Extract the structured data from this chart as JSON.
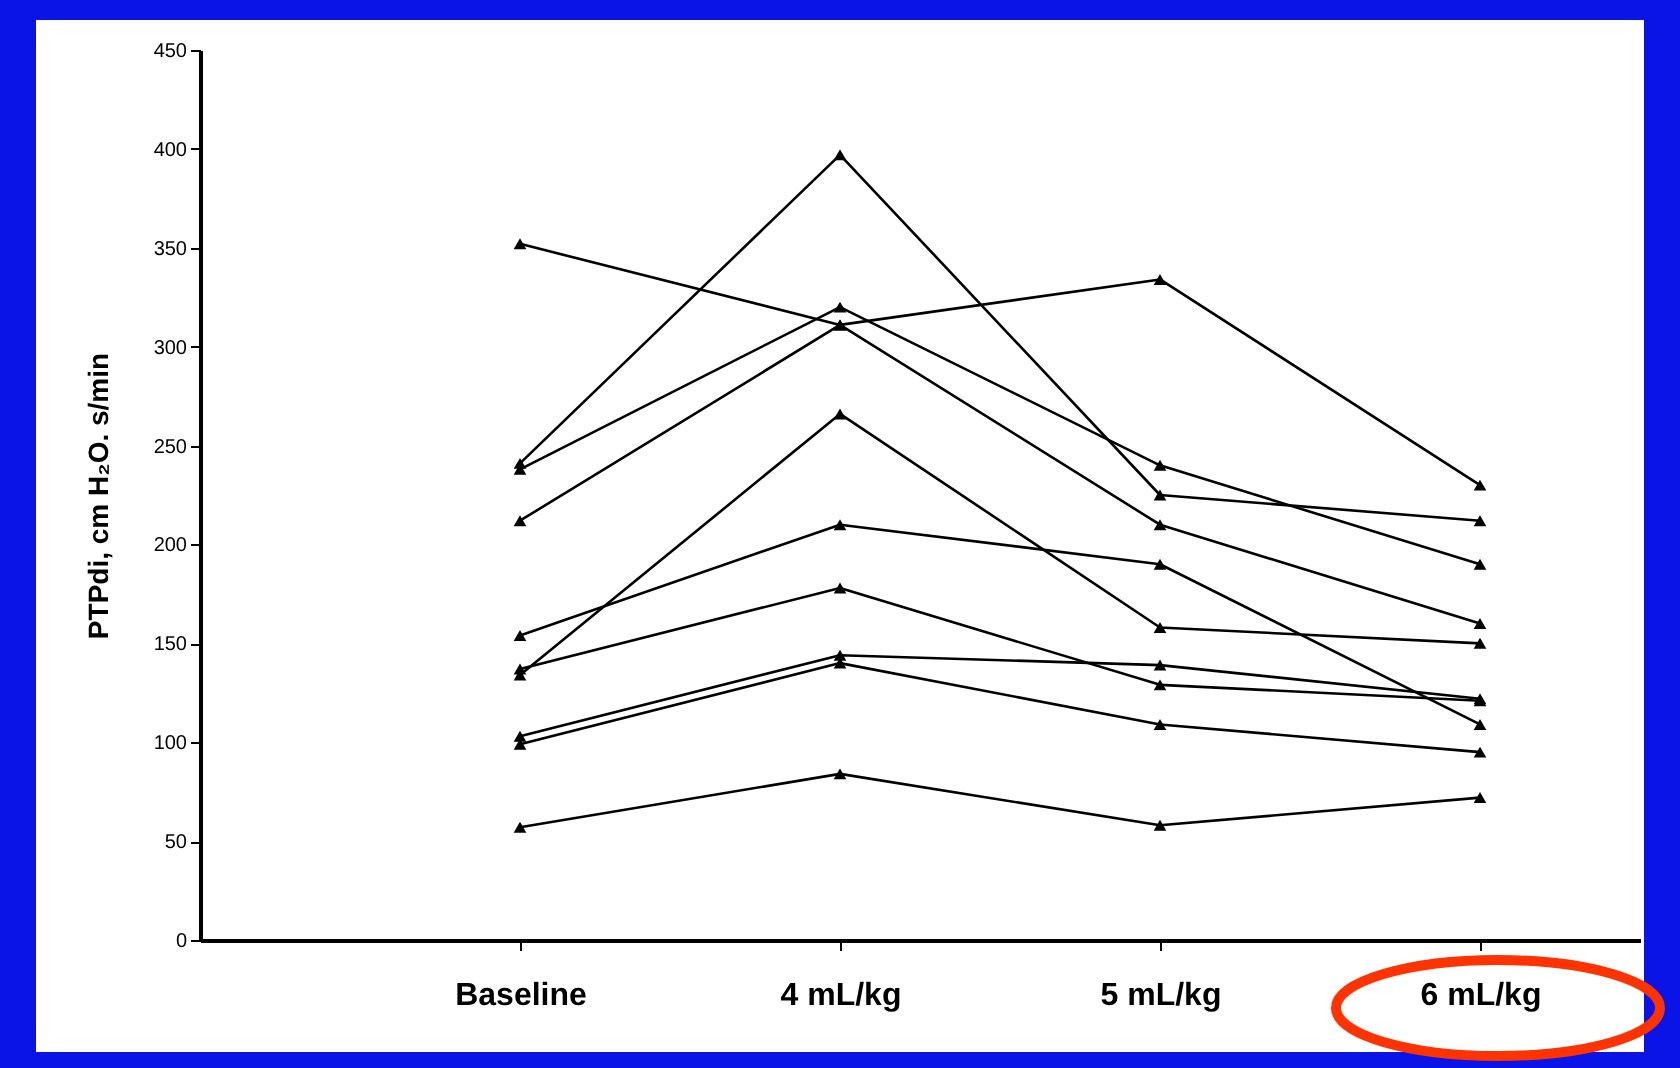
{
  "chart_data": {
    "type": "line",
    "ylabel": "PTPdi, cm H₂O. s/min",
    "categories": [
      "Baseline",
      "4 mL/kg",
      "5 mL/kg",
      "6 mL/kg"
    ],
    "ylim": [
      0,
      450
    ],
    "yticks": [
      0,
      50,
      100,
      150,
      200,
      250,
      300,
      350,
      400,
      450
    ],
    "grid": false,
    "marker": "triangle",
    "line_style": "solid",
    "series": [
      {
        "color": "#000000",
        "values": [
          352,
          311,
          334,
          230
        ]
      },
      {
        "color": "#000000",
        "values": [
          241,
          397,
          225,
          212
        ]
      },
      {
        "color": "#000000",
        "values": [
          238,
          320,
          240,
          190
        ]
      },
      {
        "color": "#000000",
        "values": [
          212,
          311,
          210,
          160
        ]
      },
      {
        "color": "#000000",
        "values": [
          154,
          210,
          190,
          109
        ]
      },
      {
        "color": "#000000",
        "values": [
          137,
          178,
          129,
          121
        ]
      },
      {
        "color": "#000000",
        "values": [
          134,
          266,
          158,
          150
        ]
      },
      {
        "color": "#000000",
        "values": [
          103,
          144,
          139,
          122
        ]
      },
      {
        "color": "#000000",
        "values": [
          99,
          140,
          109,
          95
        ]
      },
      {
        "color": "#000000",
        "values": [
          57,
          84,
          58,
          72
        ]
      }
    ]
  }
}
